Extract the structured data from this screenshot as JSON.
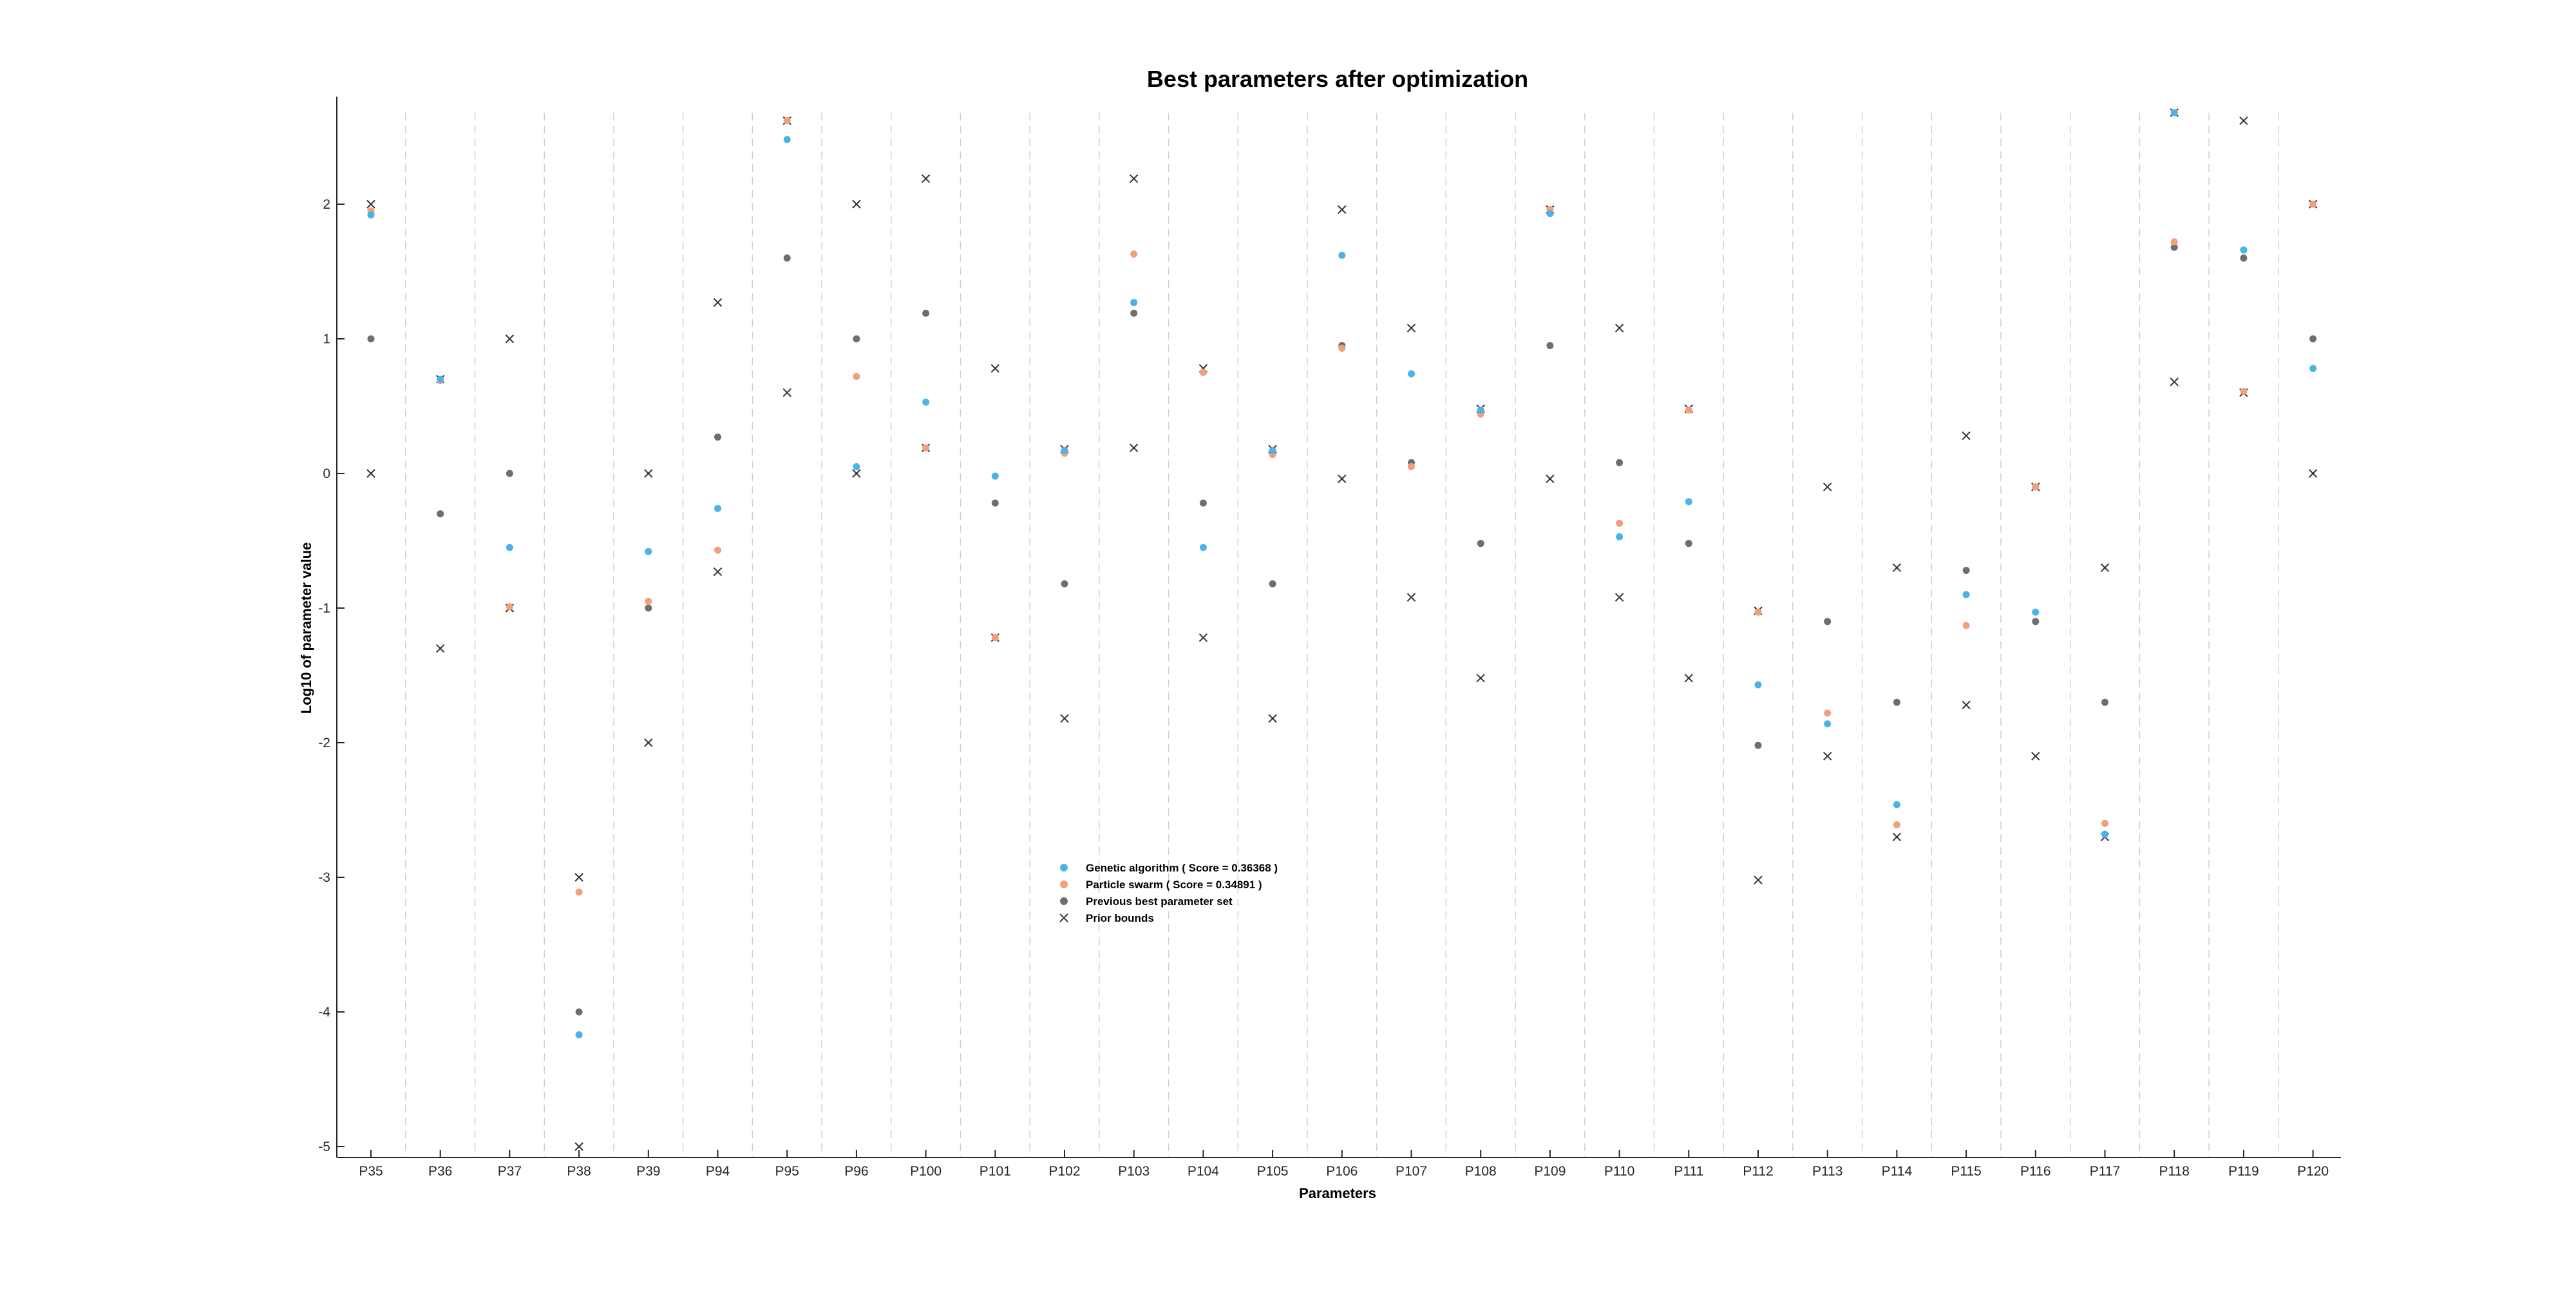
{
  "chart_data": {
    "type": "scatter",
    "title": "Best parameters after optimization",
    "xlabel": "Parameters",
    "ylabel": "Log10 of parameter value",
    "ylim": [
      -5.1,
      2.8
    ],
    "yticks": [
      -5,
      -4,
      -3,
      -2,
      -1,
      0,
      1,
      2
    ],
    "categories": [
      "P35",
      "P36",
      "P37",
      "P38",
      "P39",
      "P94",
      "P95",
      "P96",
      "P100",
      "P101",
      "P102",
      "P103",
      "P104",
      "P105",
      "P106",
      "P107",
      "P108",
      "P109",
      "P110",
      "P111",
      "P112",
      "P113",
      "P114",
      "P115",
      "P116",
      "P117",
      "P118",
      "P119",
      "P120"
    ],
    "grid": "vertical dashed separators between parameters",
    "legend_position": "center",
    "series": [
      {
        "name": "Genetic algorithm ( Score = 0.36368 )",
        "marker": "dot",
        "color": "#4DB3E6",
        "values": [
          1.92,
          0.7,
          -0.55,
          -4.17,
          -0.58,
          -0.26,
          2.48,
          0.05,
          0.53,
          -0.02,
          0.17,
          1.27,
          -0.55,
          0.17,
          1.62,
          0.74,
          0.47,
          1.93,
          -0.47,
          -0.21,
          -1.57,
          -1.86,
          -2.46,
          -0.9,
          -1.03,
          -2.68,
          2.68,
          1.66,
          0.78
        ]
      },
      {
        "name": "Particle swarm ( Score = 0.34891 )",
        "marker": "dot",
        "color": "#F0A07C",
        "values": [
          1.95,
          0.69,
          -0.99,
          -3.11,
          -0.95,
          -0.57,
          2.62,
          0.72,
          0.19,
          -1.22,
          0.15,
          1.63,
          0.75,
          0.14,
          0.93,
          0.05,
          0.44,
          1.96,
          -0.37,
          0.47,
          -1.03,
          -1.78,
          -2.61,
          -1.13,
          -0.1,
          -2.6,
          1.72,
          0.61,
          2.0
        ]
      },
      {
        "name": "Previous best parameter set",
        "marker": "dot",
        "color": "#6E6E6E",
        "values": [
          1.0,
          -0.3,
          0.0,
          -4.0,
          -1.0,
          0.27,
          1.6,
          1.0,
          1.19,
          -0.22,
          -0.82,
          1.19,
          -0.22,
          -0.82,
          0.95,
          0.08,
          -0.52,
          0.95,
          0.08,
          -0.52,
          -2.02,
          -1.1,
          -1.7,
          -0.72,
          -1.1,
          -1.7,
          1.68,
          1.6,
          1.0
        ]
      }
    ],
    "bounds": {
      "name": "Prior bounds",
      "marker": "x",
      "color": "#333333",
      "upper": [
        2.0,
        0.7,
        1.0,
        -3.0,
        0.0,
        1.27,
        2.62,
        2.0,
        2.19,
        0.78,
        0.18,
        2.19,
        0.78,
        0.18,
        1.96,
        1.08,
        0.48,
        1.96,
        1.08,
        0.48,
        -1.02,
        -0.1,
        -0.7,
        0.28,
        -0.1,
        -0.7,
        2.68,
        2.62,
        2.0
      ],
      "lower": [
        0.0,
        -1.3,
        -1.0,
        -5.0,
        -2.0,
        -0.73,
        0.6,
        0.0,
        0.19,
        -1.22,
        -1.82,
        0.19,
        -1.22,
        -1.82,
        -0.04,
        -0.92,
        -1.52,
        -0.04,
        -0.92,
        -1.52,
        -3.02,
        -2.1,
        -2.7,
        -1.72,
        -2.1,
        -2.7,
        0.68,
        0.6,
        0.0
      ]
    }
  }
}
